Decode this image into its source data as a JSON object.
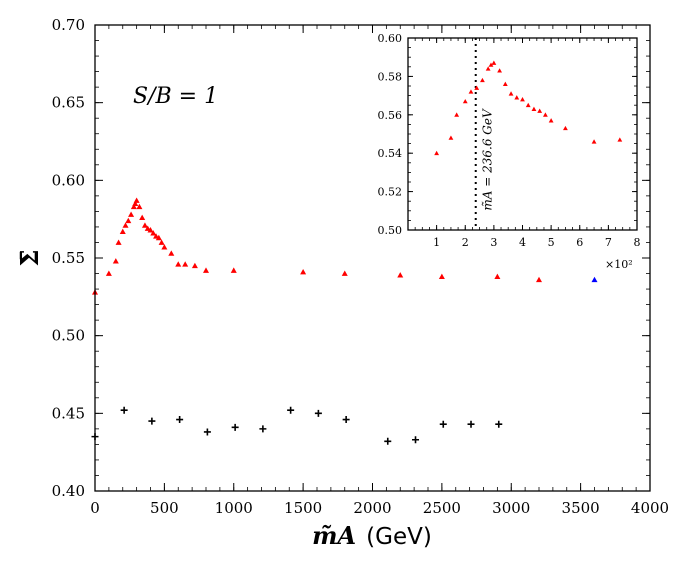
{
  "chart_data": [
    {
      "id": "main",
      "type": "scatter",
      "title": "",
      "xlabel_symbol": "m̃A",
      "xlabel_unit": "(GeV)",
      "ylabel": "Σ̄",
      "xlim": [
        0,
        4000
      ],
      "ylim": [
        0.4,
        0.7
      ],
      "xticks": [
        0,
        500,
        1000,
        1500,
        2000,
        2500,
        3000,
        3500,
        4000
      ],
      "xtick_labels": [
        "0",
        "500",
        "1000",
        "1500",
        "2000",
        "2500",
        "3000",
        "3500",
        "4000"
      ],
      "yticks": [
        0.4,
        0.45,
        0.5,
        0.55,
        0.6,
        0.65,
        0.7
      ],
      "ytick_labels": [
        "0.40",
        "0.45",
        "0.50",
        "0.55",
        "0.60",
        "0.65",
        "0.70"
      ],
      "annotation": "S/B = 1",
      "series": [
        {
          "name": "red",
          "color": "#ff0000",
          "marker": "triangle",
          "x": [
            0,
            100,
            150,
            170,
            200,
            220,
            240,
            260,
            280,
            290,
            300,
            320,
            340,
            360,
            380,
            400,
            420,
            440,
            460,
            480,
            500,
            550,
            600,
            650,
            720,
            800,
            1000,
            1500,
            1800,
            2200,
            2500,
            2900,
            3200
          ],
          "y": [
            0.528,
            0.54,
            0.548,
            0.56,
            0.567,
            0.571,
            0.574,
            0.578,
            0.583,
            0.585,
            0.587,
            0.583,
            0.576,
            0.571,
            0.569,
            0.568,
            0.566,
            0.564,
            0.563,
            0.56,
            0.557,
            0.553,
            0.546,
            0.546,
            0.545,
            0.542,
            0.542,
            0.541,
            0.54,
            0.539,
            0.538,
            0.538,
            0.536
          ]
        },
        {
          "name": "blue",
          "color": "#0000ff",
          "marker": "triangle",
          "x": [
            3600
          ],
          "y": [
            0.536
          ]
        },
        {
          "name": "black",
          "color": "#000000",
          "marker": "plus",
          "x": [
            0,
            210,
            410,
            610,
            810,
            1010,
            1210,
            1410,
            1610,
            1810,
            2110,
            2310,
            2510,
            2710,
            2910
          ],
          "y": [
            0.435,
            0.452,
            0.445,
            0.446,
            0.438,
            0.441,
            0.44,
            0.452,
            0.45,
            0.446,
            0.432,
            0.433,
            0.443,
            0.443,
            0.443
          ]
        }
      ]
    },
    {
      "id": "inset",
      "type": "scatter",
      "xlim": [
        0,
        8
      ],
      "ylim": [
        0.5,
        0.6
      ],
      "xticks": [
        1,
        2,
        3,
        4,
        5,
        6,
        7,
        8
      ],
      "xtick_labels": [
        "1",
        "2",
        "3",
        "4",
        "5",
        "6",
        "7",
        "8"
      ],
      "yticks": [
        0.5,
        0.52,
        0.54,
        0.56,
        0.58,
        0.6
      ],
      "ytick_labels": [
        "0.50",
        "0.52",
        "0.54",
        "0.56",
        "0.58",
        "0.60"
      ],
      "x_multiplier_label": "×10²",
      "vline_x": 2.366,
      "vline_label": "m̃A = 236.6 GeV",
      "series": [
        {
          "name": "red",
          "color": "#ff0000",
          "marker": "triangle",
          "x": [
            1.0,
            1.5,
            1.7,
            2.0,
            2.2,
            2.4,
            2.6,
            2.8,
            2.9,
            3.0,
            3.2,
            3.4,
            3.6,
            3.8,
            4.0,
            4.2,
            4.4,
            4.6,
            4.8,
            5.0,
            5.5,
            6.5,
            7.4
          ],
          "y": [
            0.54,
            0.548,
            0.56,
            0.567,
            0.572,
            0.574,
            0.578,
            0.584,
            0.586,
            0.587,
            0.583,
            0.576,
            0.571,
            0.569,
            0.568,
            0.565,
            0.563,
            0.562,
            0.56,
            0.557,
            0.553,
            0.546,
            0.547
          ]
        }
      ]
    }
  ]
}
